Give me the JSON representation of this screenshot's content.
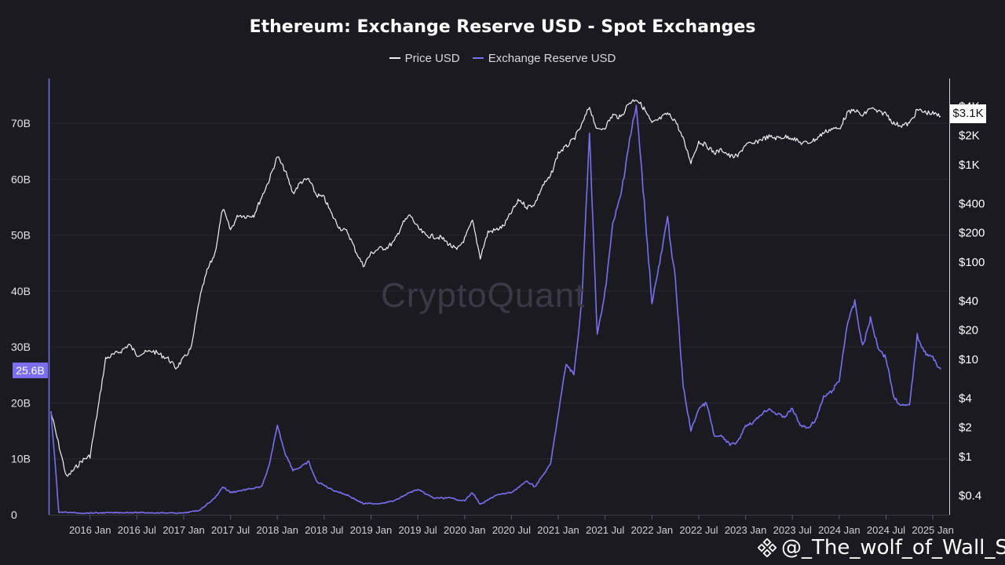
{
  "header": {
    "title": "Ethereum: Exchange Reserve USD - Spot Exchanges"
  },
  "legend": {
    "price_label": "Price USD",
    "reserve_label": "Exchange Reserve USD"
  },
  "badges": {
    "left_value": "25.6B",
    "right_value": "$3.1K"
  },
  "watermark": {
    "text": "CryptoQuant"
  },
  "overlay": {
    "handle": "@_The_wolf_of_Wall_St..."
  },
  "colors": {
    "background": "#1b1a21",
    "price_line": "#f2f2f2",
    "reserve_line": "#7b6ff0",
    "grid": "#2a2932"
  },
  "chart_data": {
    "type": "line",
    "title": "Ethereum: Exchange Reserve USD - Spot Exchanges",
    "x_ticks": [
      "2016 Jan",
      "2016 Jul",
      "2017 Jan",
      "2017 Jul",
      "2018 Jan",
      "2018 Jul",
      "2019 Jan",
      "2019 Jul",
      "2020 Jan",
      "2020 Jul",
      "2021 Jan",
      "2021 Jul",
      "2022 Jan",
      "2022 Jul",
      "2023 Jan",
      "2023 Jul",
      "2024 Jan",
      "2024 Jul",
      "2025 Jan"
    ],
    "x_range": [
      "2015-08",
      "2025-03"
    ],
    "left_axis": {
      "ticks": [
        "0",
        "10B",
        "20B",
        "30B",
        "40B",
        "50B",
        "60B",
        "70B"
      ],
      "values": [
        0,
        10,
        20,
        30,
        40,
        50,
        60,
        70
      ],
      "unit": "B",
      "ylim": [
        0,
        78
      ]
    },
    "right_axis": {
      "scale": "log",
      "ticks": [
        "$0.4",
        "$1",
        "$2",
        "$4",
        "$10",
        "$20",
        "$40",
        "$100",
        "$200",
        "$400",
        "$1K",
        "$2K",
        "$4K"
      ],
      "values": [
        0.4,
        1,
        2,
        4,
        10,
        20,
        40,
        100,
        200,
        400,
        1000,
        2000,
        4000
      ]
    },
    "series": [
      {
        "name": "Price USD",
        "axis": "right",
        "color": "#f2f2f2",
        "points": [
          [
            "2015-08",
            2.8
          ],
          [
            "2015-10",
            0.6
          ],
          [
            "2015-12",
            0.9
          ],
          [
            "2016-01",
            1.0
          ],
          [
            "2016-02",
            3
          ],
          [
            "2016-03",
            10
          ],
          [
            "2016-05",
            12
          ],
          [
            "2016-06",
            14
          ],
          [
            "2016-07",
            11
          ],
          [
            "2016-09",
            12
          ],
          [
            "2016-11",
            10
          ],
          [
            "2016-12",
            8
          ],
          [
            "2017-01",
            10
          ],
          [
            "2017-02",
            13
          ],
          [
            "2017-03",
            40
          ],
          [
            "2017-04",
            80
          ],
          [
            "2017-05",
            120
          ],
          [
            "2017-06",
            350
          ],
          [
            "2017-07",
            210
          ],
          [
            "2017-08",
            300
          ],
          [
            "2017-09",
            290
          ],
          [
            "2017-10",
            300
          ],
          [
            "2017-11",
            460
          ],
          [
            "2017-12",
            700
          ],
          [
            "2018-01",
            1200
          ],
          [
            "2018-02",
            850
          ],
          [
            "2018-03",
            500
          ],
          [
            "2018-04",
            650
          ],
          [
            "2018-05",
            700
          ],
          [
            "2018-06",
            480
          ],
          [
            "2018-07",
            450
          ],
          [
            "2018-08",
            300
          ],
          [
            "2018-09",
            220
          ],
          [
            "2018-10",
            200
          ],
          [
            "2018-11",
            130
          ],
          [
            "2018-12",
            90
          ],
          [
            "2019-01",
            120
          ],
          [
            "2019-02",
            135
          ],
          [
            "2019-03",
            138
          ],
          [
            "2019-04",
            160
          ],
          [
            "2019-05",
            240
          ],
          [
            "2019-06",
            300
          ],
          [
            "2019-07",
            220
          ],
          [
            "2019-08",
            185
          ],
          [
            "2019-09",
            180
          ],
          [
            "2019-10",
            175
          ],
          [
            "2019-11",
            150
          ],
          [
            "2019-12",
            130
          ],
          [
            "2020-01",
            170
          ],
          [
            "2020-02",
            260
          ],
          [
            "2020-03",
            110
          ],
          [
            "2020-04",
            200
          ],
          [
            "2020-05",
            210
          ],
          [
            "2020-06",
            230
          ],
          [
            "2020-07",
            320
          ],
          [
            "2020-08",
            430
          ],
          [
            "2020-09",
            360
          ],
          [
            "2020-10",
            390
          ],
          [
            "2020-11",
            600
          ],
          [
            "2020-12",
            740
          ],
          [
            "2021-01",
            1300
          ],
          [
            "2021-02",
            1500
          ],
          [
            "2021-03",
            1800
          ],
          [
            "2021-04",
            2500
          ],
          [
            "2021-05",
            3900
          ],
          [
            "2021-06",
            2200
          ],
          [
            "2021-07",
            2400
          ],
          [
            "2021-08",
            3200
          ],
          [
            "2021-09",
            3000
          ],
          [
            "2021-10",
            4200
          ],
          [
            "2021-11",
            4700
          ],
          [
            "2021-12",
            3700
          ],
          [
            "2022-01",
            2600
          ],
          [
            "2022-02",
            2900
          ],
          [
            "2022-03",
            3300
          ],
          [
            "2022-04",
            2800
          ],
          [
            "2022-05",
            1800
          ],
          [
            "2022-06",
            1050
          ],
          [
            "2022-07",
            1700
          ],
          [
            "2022-08",
            1550
          ],
          [
            "2022-09",
            1300
          ],
          [
            "2022-10",
            1400
          ],
          [
            "2022-11",
            1200
          ],
          [
            "2022-12",
            1200
          ],
          [
            "2023-01",
            1600
          ],
          [
            "2023-02",
            1600
          ],
          [
            "2023-03",
            1800
          ],
          [
            "2023-04",
            1900
          ],
          [
            "2023-05",
            1850
          ],
          [
            "2023-06",
            1900
          ],
          [
            "2023-07",
            1870
          ],
          [
            "2023-08",
            1650
          ],
          [
            "2023-09",
            1650
          ],
          [
            "2023-10",
            1800
          ],
          [
            "2023-11",
            2100
          ],
          [
            "2023-12",
            2300
          ],
          [
            "2024-01",
            2300
          ],
          [
            "2024-02",
            3300
          ],
          [
            "2024-03",
            3600
          ],
          [
            "2024-04",
            3100
          ],
          [
            "2024-05",
            3800
          ],
          [
            "2024-06",
            3400
          ],
          [
            "2024-07",
            3300
          ],
          [
            "2024-08",
            2600
          ],
          [
            "2024-09",
            2500
          ],
          [
            "2024-10",
            2600
          ],
          [
            "2024-11",
            3600
          ],
          [
            "2024-12",
            3400
          ],
          [
            "2025-01",
            3300
          ],
          [
            "2025-02",
            3100
          ]
        ]
      },
      {
        "name": "Exchange Reserve USD",
        "axis": "left",
        "color": "#7b6ff0",
        "points": [
          [
            "2015-08",
            18.5
          ],
          [
            "2015-09",
            0.5
          ],
          [
            "2015-12",
            0.3
          ],
          [
            "2016-06",
            0.4
          ],
          [
            "2017-01",
            0.3
          ],
          [
            "2017-03",
            0.8
          ],
          [
            "2017-05",
            3
          ],
          [
            "2017-06",
            5
          ],
          [
            "2017-07",
            4
          ],
          [
            "2017-09",
            4.5
          ],
          [
            "2017-11",
            5
          ],
          [
            "2017-12",
            9
          ],
          [
            "2018-01",
            16
          ],
          [
            "2018-02",
            11
          ],
          [
            "2018-03",
            8
          ],
          [
            "2018-04",
            8.5
          ],
          [
            "2018-05",
            9.5
          ],
          [
            "2018-06",
            6
          ],
          [
            "2018-08",
            4.5
          ],
          [
            "2018-10",
            3.5
          ],
          [
            "2018-12",
            2
          ],
          [
            "2019-02",
            2
          ],
          [
            "2019-04",
            2.5
          ],
          [
            "2019-06",
            4
          ],
          [
            "2019-07",
            4.5
          ],
          [
            "2019-09",
            3
          ],
          [
            "2019-11",
            3
          ],
          [
            "2020-01",
            2.5
          ],
          [
            "2020-02",
            4
          ],
          [
            "2020-03",
            1.8
          ],
          [
            "2020-05",
            3.5
          ],
          [
            "2020-07",
            4
          ],
          [
            "2020-09",
            6
          ],
          [
            "2020-10",
            5
          ],
          [
            "2020-12",
            9
          ],
          [
            "2021-01",
            18
          ],
          [
            "2021-02",
            27
          ],
          [
            "2021-03",
            25
          ],
          [
            "2021-04",
            38
          ],
          [
            "2021-05",
            68
          ],
          [
            "2021-06",
            32
          ],
          [
            "2021-07",
            40
          ],
          [
            "2021-08",
            52
          ],
          [
            "2021-09",
            57
          ],
          [
            "2021-10",
            66
          ],
          [
            "2021-11",
            73
          ],
          [
            "2021-12",
            56
          ],
          [
            "2022-01",
            38
          ],
          [
            "2022-02",
            45
          ],
          [
            "2022-03",
            53
          ],
          [
            "2022-04",
            42
          ],
          [
            "2022-05",
            23
          ],
          [
            "2022-06",
            15
          ],
          [
            "2022-07",
            19
          ],
          [
            "2022-08",
            20
          ],
          [
            "2022-09",
            14
          ],
          [
            "2022-10",
            14
          ],
          [
            "2022-11",
            12.5
          ],
          [
            "2022-12",
            13
          ],
          [
            "2023-01",
            16
          ],
          [
            "2023-02",
            16.5
          ],
          [
            "2023-03",
            18
          ],
          [
            "2023-04",
            19
          ],
          [
            "2023-05",
            18
          ],
          [
            "2023-06",
            17.5
          ],
          [
            "2023-07",
            19
          ],
          [
            "2023-08",
            16
          ],
          [
            "2023-09",
            15.5
          ],
          [
            "2023-10",
            17
          ],
          [
            "2023-11",
            21
          ],
          [
            "2023-12",
            22
          ],
          [
            "2024-01",
            24
          ],
          [
            "2024-02",
            34
          ],
          [
            "2024-03",
            38
          ],
          [
            "2024-04",
            30
          ],
          [
            "2024-05",
            35
          ],
          [
            "2024-06",
            30
          ],
          [
            "2024-07",
            28
          ],
          [
            "2024-08",
            21
          ],
          [
            "2024-09",
            19.5
          ],
          [
            "2024-10",
            19.5
          ],
          [
            "2024-11",
            32
          ],
          [
            "2024-12",
            29
          ],
          [
            "2025-01",
            28
          ],
          [
            "2025-02",
            26
          ]
        ]
      }
    ],
    "grid": true,
    "legend_position": "top-center"
  }
}
